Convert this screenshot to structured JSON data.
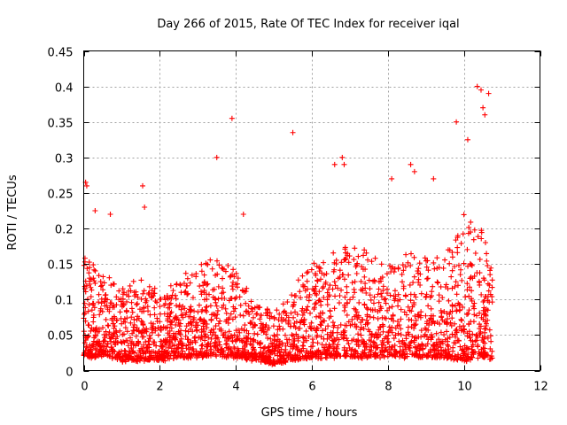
{
  "chart_data": {
    "type": "scatter",
    "title": "Day 266 of 2015, Rate Of TEC Index for receiver iqal",
    "xlabel": "GPS time / hours",
    "ylabel": "ROTI / TECUs",
    "xlim": [
      0,
      12
    ],
    "ylim": [
      0,
      0.45
    ],
    "xticks": [
      0,
      2,
      4,
      6,
      8,
      10,
      12
    ],
    "xtick_labels": [
      "0",
      "2",
      "4",
      "6",
      "8",
      "10",
      "12"
    ],
    "yticks": [
      0,
      0.05,
      0.1,
      0.15,
      0.2,
      0.25,
      0.3,
      0.35,
      0.4,
      0.45
    ],
    "ytick_labels": [
      "0",
      "0.05",
      "0.1",
      "0.15",
      "0.2",
      "0.25",
      "0.3",
      "0.35",
      "0.4",
      "0.45"
    ],
    "grid": true,
    "marker": "+",
    "color": "#ff0000",
    "series": [
      {
        "name": "ROTI",
        "x_range_observed": [
          0,
          10.75
        ],
        "envelope_x": [
          0,
          0.5,
          1,
          1.5,
          2,
          2.5,
          3,
          3.5,
          4,
          4.5,
          5,
          5.5,
          6,
          6.5,
          7,
          7.5,
          8,
          8.5,
          9,
          9.5,
          10,
          10.5,
          10.75
        ],
        "envelope_typical_max": [
          0.17,
          0.14,
          0.12,
          0.13,
          0.11,
          0.13,
          0.15,
          0.17,
          0.14,
          0.1,
          0.08,
          0.12,
          0.15,
          0.17,
          0.18,
          0.17,
          0.15,
          0.17,
          0.16,
          0.16,
          0.22,
          0.2,
          0.17
        ],
        "envelope_typical_min": [
          0.02,
          0.02,
          0.015,
          0.015,
          0.015,
          0.02,
          0.02,
          0.02,
          0.02,
          0.015,
          0.01,
          0.015,
          0.02,
          0.02,
          0.02,
          0.02,
          0.02,
          0.02,
          0.02,
          0.02,
          0.015,
          0.02,
          0.015
        ],
        "outliers": [
          [
            0.05,
            0.265
          ],
          [
            0.08,
            0.26
          ],
          [
            0.3,
            0.225
          ],
          [
            0.7,
            0.22
          ],
          [
            1.55,
            0.26
          ],
          [
            1.6,
            0.23
          ],
          [
            3.5,
            0.3
          ],
          [
            3.9,
            0.355
          ],
          [
            4.2,
            0.22
          ],
          [
            5.5,
            0.335
          ],
          [
            6.6,
            0.29
          ],
          [
            6.8,
            0.3
          ],
          [
            6.85,
            0.29
          ],
          [
            8.1,
            0.27
          ],
          [
            8.6,
            0.29
          ],
          [
            8.7,
            0.28
          ],
          [
            9.2,
            0.27
          ],
          [
            9.8,
            0.35
          ],
          [
            10.1,
            0.325
          ],
          [
            10.35,
            0.4
          ],
          [
            10.45,
            0.395
          ],
          [
            10.5,
            0.37
          ],
          [
            10.55,
            0.36
          ],
          [
            10.65,
            0.39
          ]
        ]
      }
    ]
  }
}
